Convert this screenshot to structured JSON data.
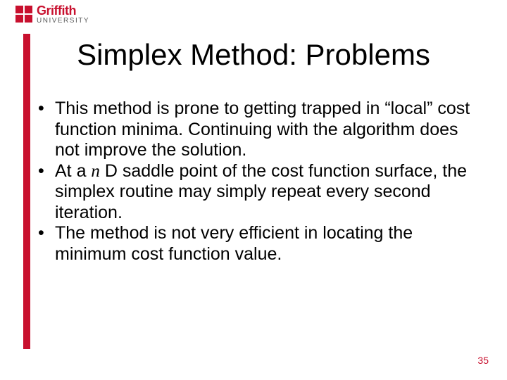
{
  "logo": {
    "name": "Griffith",
    "sub": "UNIVERSITY",
    "brand_color": "#c8102e"
  },
  "title": "Simplex Method: Problems",
  "bullets": [
    "This method is prone to getting trapped in “local” cost function minima. Continuing with the algorithm does not improve the solution.",
    "At a |n| D saddle point of the cost function surface, the simplex routine may simply repeat every second iteration.",
    "The method is not very efficient in locating the minimum cost function value."
  ],
  "page_number": "35",
  "style": {
    "background_color": "#ffffff",
    "title_fontsize": 42,
    "body_fontsize": 25,
    "accent_bar_color": "#c8102e",
    "page_number_color": "#c8102e"
  }
}
